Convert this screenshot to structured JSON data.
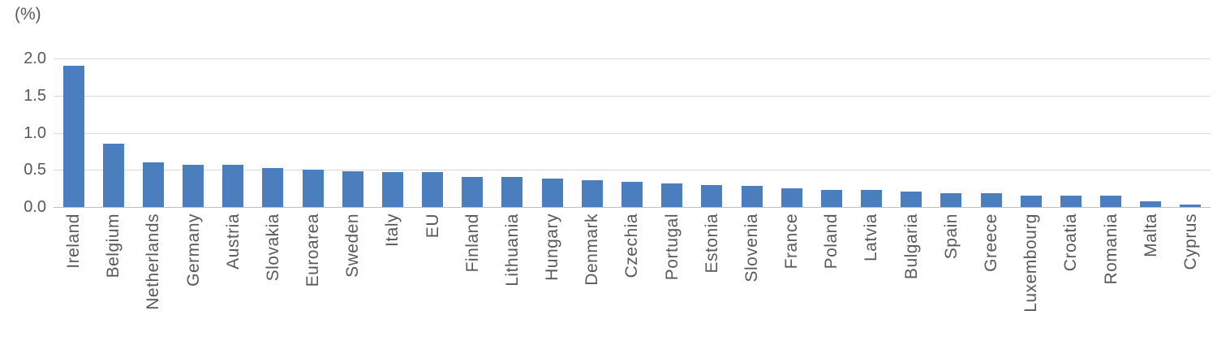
{
  "chart_data": {
    "type": "bar",
    "title": "",
    "xlabel": "",
    "ylabel": "(%)",
    "categories": [
      "Ireland",
      "Belgium",
      "Netherlands",
      "Germany",
      "Austria",
      "Slovakia",
      "Euroarea",
      "Sweden",
      "Italy",
      "EU",
      "Finland",
      "Lithuania",
      "Hungary",
      "Denmark",
      "Czechia",
      "Portugal",
      "Estonia",
      "Slovenia",
      "France",
      "Poland",
      "Latvia",
      "Bulgaria",
      "Spain",
      "Greece",
      "Luxembourg",
      "Croatia",
      "Romania",
      "Malta",
      "Cyprus"
    ],
    "values": [
      1.9,
      0.85,
      0.6,
      0.57,
      0.57,
      0.53,
      0.5,
      0.48,
      0.47,
      0.47,
      0.4,
      0.4,
      0.38,
      0.36,
      0.34,
      0.32,
      0.29,
      0.28,
      0.25,
      0.23,
      0.23,
      0.21,
      0.19,
      0.19,
      0.15,
      0.15,
      0.15,
      0.08,
      0.03
    ],
    "ylim": [
      0,
      2.0
    ],
    "yticks": [
      0.0,
      0.5,
      1.0,
      1.5,
      2.0
    ],
    "ytick_labels": [
      "0.0",
      "0.5",
      "1.0",
      "1.5",
      "2.0"
    ],
    "grid": true,
    "legend": "none",
    "colors": {
      "bar": "#4a7ebc",
      "gridline": "#d9d9d9",
      "axis_line": "#bfbfbf",
      "text": "#595959"
    }
  }
}
